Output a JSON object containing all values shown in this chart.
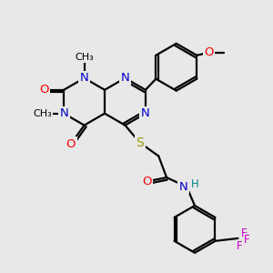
{
  "background_color": "#e8e8e8",
  "atom_colors": {
    "N": "#0000cc",
    "O": "#ff0000",
    "S": "#999900",
    "F": "#cc00cc",
    "C": "#000000",
    "H": "#008888"
  },
  "bond_color": "#000000",
  "bond_width": 1.6
}
